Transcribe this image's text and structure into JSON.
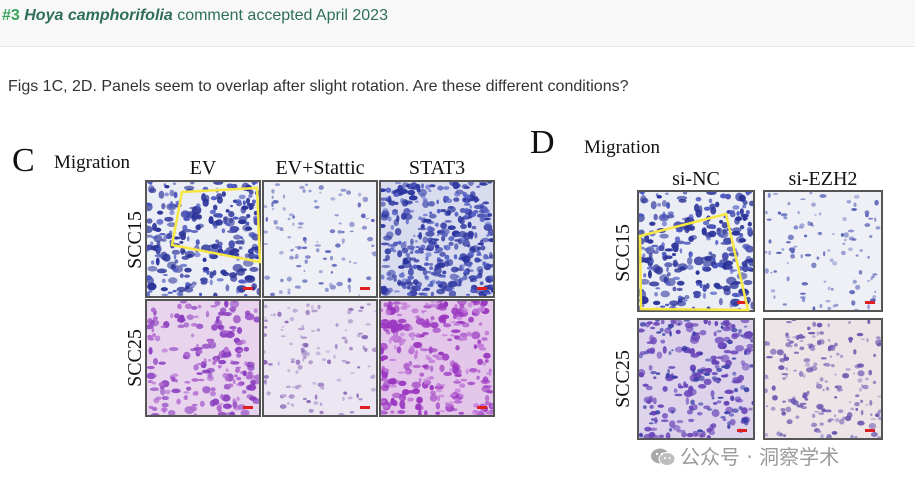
{
  "header": {
    "number": "#3",
    "species": "Hoya camphorifolia",
    "status": "comment accepted April 2023"
  },
  "comment": "Figs 1C, 2D. Panels seem to overlap after slight rotation. Are these different conditions?",
  "figure": {
    "panel_c": {
      "letter": "C",
      "title": "Migration",
      "columns": [
        "EV",
        "EV+Stattic",
        "STAT3"
      ],
      "rows": [
        "SCC15",
        "SCC25"
      ]
    },
    "panel_d": {
      "letter": "D",
      "title": "Migration",
      "columns": [
        "si-NC",
        "si-EZH2"
      ],
      "rows": [
        "SCC15",
        "SCC25"
      ]
    },
    "highlight_color": "#f5e642",
    "scalebar_color": "#e02020",
    "stain_colors": {
      "dark_blue": "#2c35a0",
      "light_blue_bg": "#eef0f6",
      "purple": "#9a3fc0",
      "pink_bg": "#e7d2ec"
    }
  },
  "watermark": {
    "text": "公众号 · 洞察学术",
    "icon": "wechat-icon"
  }
}
